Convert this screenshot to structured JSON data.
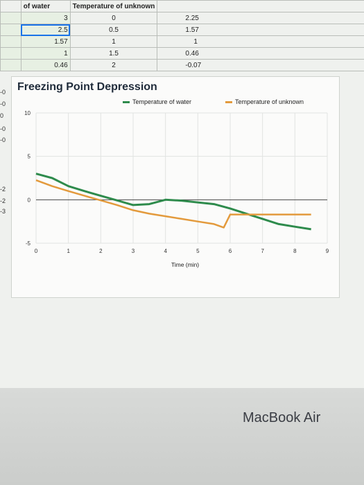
{
  "spreadsheet": {
    "headers": [
      "",
      "of water",
      "Temperature of unknown",
      ""
    ],
    "rows": [
      [
        "",
        "3",
        "0",
        "2.25"
      ],
      [
        "",
        "2.5",
        "0.5",
        "1.57"
      ],
      [
        "",
        "1.57",
        "1",
        "1"
      ],
      [
        "",
        "1",
        "1.5",
        "0.46"
      ],
      [
        "",
        "0.46",
        "2",
        "-0.07"
      ]
    ],
    "left_fragments": [
      "-0",
      "-0",
      "0",
      "-0",
      "-0",
      "-2",
      "-2",
      "-3"
    ]
  },
  "chart_data": {
    "type": "line",
    "title": "Freezing Point Depression",
    "xlabel": "Time (min)",
    "ylabel": "",
    "xlim": [
      0,
      9
    ],
    "ylim": [
      -5,
      10
    ],
    "x_ticks": [
      "0",
      "1",
      "2",
      "3",
      "4",
      "5",
      "6",
      "7",
      "8",
      "9"
    ],
    "y_ticks": [
      "10",
      "5",
      "0",
      "-5"
    ],
    "grid": true,
    "legend_position": "top-right",
    "series": [
      {
        "name": "Temperature of water",
        "color": "#2e8b4c",
        "x": [
          0,
          0.5,
          1,
          1.5,
          2,
          2.5,
          3,
          3.5,
          4,
          4.5,
          5,
          5.5,
          6,
          6.5,
          7,
          7.5,
          8,
          8.5
        ],
        "y": [
          3,
          2.5,
          1.57,
          1,
          0.46,
          -0.07,
          -0.6,
          -0.5,
          0,
          -0.1,
          -0.3,
          -0.5,
          -1,
          -1.6,
          -2.2,
          -2.8,
          -3.1,
          -3.4
        ]
      },
      {
        "name": "Temperature of unknown",
        "color": "#e39a3c",
        "x": [
          0,
          0.5,
          1,
          1.5,
          2,
          2.5,
          3,
          3.5,
          4,
          4.5,
          5,
          5.5,
          5.8,
          6,
          6.5,
          7,
          7.5,
          8,
          8.5
        ],
        "y": [
          2.25,
          1.57,
          1,
          0.46,
          -0.07,
          -0.6,
          -1.2,
          -1.6,
          -1.9,
          -2.2,
          -2.5,
          -2.8,
          -3.2,
          -1.7,
          -1.7,
          -1.7,
          -1.7,
          -1.7,
          -1.7
        ]
      }
    ]
  },
  "device": {
    "brand_label": "MacBook Air"
  }
}
